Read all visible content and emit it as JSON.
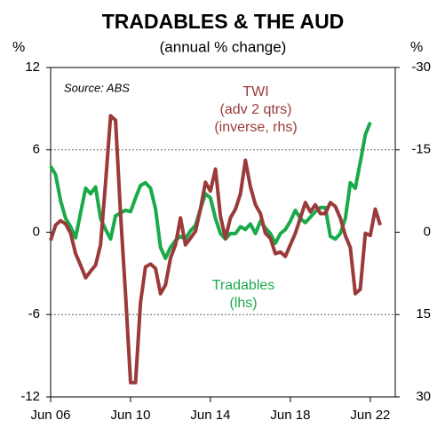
{
  "chart_data": {
    "type": "line",
    "title": "TRADABLES & THE AUD",
    "subtitle": "(annual % change)",
    "y_axis_label": "%",
    "y2_axis_label": "%",
    "source": "Source: ABS",
    "annotations": [
      {
        "lines": [
          "TWI",
          "(adv 2 qtrs)",
          "(inverse, rhs)"
        ],
        "color": "#9b3a3a"
      },
      {
        "lines": [
          "Tradables",
          "(lhs)"
        ],
        "color": "#1aaa4a"
      }
    ],
    "x": [
      2006.5,
      2006.75,
      2007,
      2007.25,
      2007.5,
      2007.75,
      2008,
      2008.25,
      2008.5,
      2008.75,
      2009,
      2009.25,
      2009.5,
      2009.75,
      2010,
      2010.25,
      2010.5,
      2010.75,
      2011,
      2011.25,
      2011.5,
      2011.75,
      2012,
      2012.25,
      2012.5,
      2012.75,
      2013,
      2013.25,
      2013.5,
      2013.75,
      2014,
      2014.25,
      2014.5,
      2014.75,
      2015,
      2015.25,
      2015.5,
      2015.75,
      2016,
      2016.25,
      2016.5,
      2016.75,
      2017,
      2017.25,
      2017.5,
      2017.75,
      2018,
      2018.25,
      2018.5,
      2018.75,
      2019,
      2019.25,
      2019.5,
      2019.75,
      2020,
      2020.25,
      2020.5,
      2020.75,
      2021,
      2021.25,
      2021.5,
      2021.75,
      2022,
      2022.25,
      2022.5,
      2022.75,
      2023
    ],
    "xlim": [
      2006.5,
      2023.75
    ],
    "xticks": [
      {
        "value": 2006.5,
        "label": "Jun 06"
      },
      {
        "value": 2010.5,
        "label": "Jun 10"
      },
      {
        "value": 2014.5,
        "label": "Jun 14"
      },
      {
        "value": 2018.5,
        "label": "Jun 18"
      },
      {
        "value": 2022.5,
        "label": "Jun 22"
      }
    ],
    "ylim": [
      -12,
      12
    ],
    "yticks": [
      -12,
      -6,
      0,
      6,
      12
    ],
    "y2lim": [
      -30,
      30
    ],
    "y2ticks": [
      -30,
      -15,
      0,
      15,
      30
    ],
    "y2_inverted": true,
    "grid": true,
    "series": [
      {
        "name": "Tradables",
        "color": "#1aaa4a",
        "values": [
          4.8,
          4.2,
          2.3,
          1.0,
          0.4,
          -0.4,
          1.4,
          3.2,
          2.8,
          3.3,
          1.0,
          0.2,
          -0.5,
          1.2,
          1.4,
          1.6,
          1.5,
          2.5,
          3.4,
          3.6,
          3.2,
          1.7,
          -1.1,
          -1.9,
          -1.1,
          -0.6,
          -0.3,
          -0.5,
          0.1,
          0.5,
          1.7,
          2.8,
          2.5,
          1.0,
          -0.1,
          -0.5,
          -0.1,
          -0.1,
          0.4,
          0.2,
          0.6,
          -0.1,
          0.8,
          0.3,
          -0.1,
          -0.8,
          -0.1,
          0.2,
          0.8,
          1.6,
          1.0,
          0.7,
          1.1,
          1.5,
          1.8,
          1.8,
          -0.3,
          -0.5,
          -0.1,
          1.0,
          3.6,
          3.2,
          5.1,
          7.1,
          8.0,
          null,
          null
        ]
      },
      {
        "name": "TWI",
        "color": "#9b3a3a",
        "axis": "y2",
        "values": [
          1.5,
          -1.3,
          -2.1,
          -1.5,
          0.2,
          3.9,
          6.0,
          8.3,
          7.1,
          6.0,
          2.3,
          -9.1,
          -21.2,
          -20.4,
          -3.4,
          11.2,
          27.4,
          27.4,
          12.8,
          6.3,
          5.8,
          6.6,
          11.2,
          9.6,
          4.7,
          2.3,
          -2.6,
          2.3,
          1.1,
          -0.2,
          -4.2,
          -9.1,
          -7.5,
          -11.5,
          -2.9,
          1.1,
          -2.6,
          -4.2,
          -7.0,
          -13.1,
          -8.3,
          -5.0,
          -3.4,
          0.2,
          1.1,
          3.9,
          3.6,
          4.4,
          2.3,
          0.2,
          -2.6,
          -5.4,
          -3.7,
          -5.0,
          -3.4,
          -3.4,
          -5.4,
          -4.7,
          -2.6,
          0.6,
          2.8,
          11.2,
          10.4,
          0.2,
          0.6,
          -4.2,
          -1.3
        ]
      }
    ]
  }
}
